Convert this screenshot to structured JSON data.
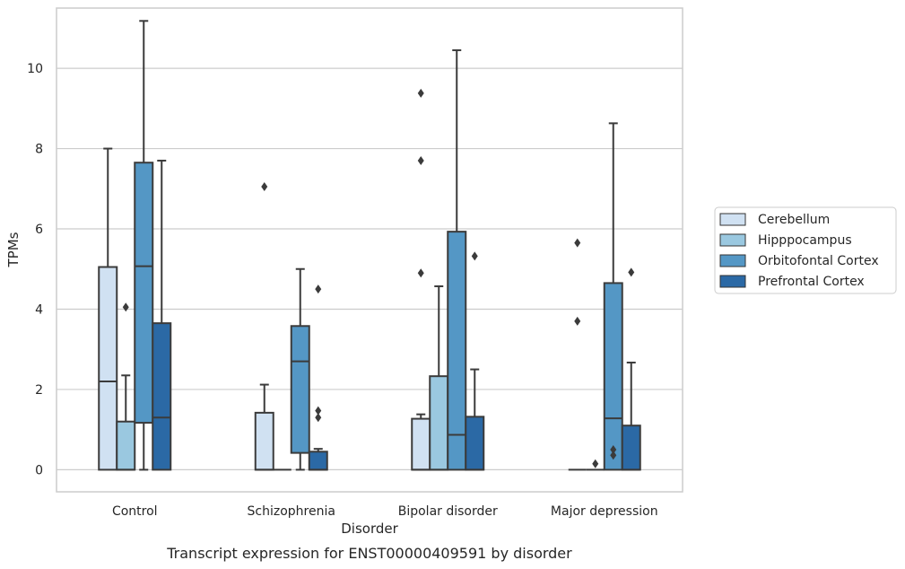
{
  "chart_data": {
    "type": "box",
    "title": "",
    "caption": "Transcript expression for ENST00000409591 by disorder",
    "xlabel": "Disorder",
    "ylabel": "TPMs",
    "ylim": [
      -0.55,
      11.5
    ],
    "yticks": [
      0,
      2,
      4,
      6,
      8,
      10
    ],
    "grid": "horizontal",
    "legend_position": "right",
    "categories": [
      "Control",
      "Schizophrenia",
      "Bipolar disorder",
      "Major depression"
    ],
    "series": [
      {
        "name": "Cerebellum",
        "color": "#d0e1f2",
        "boxes": [
          {
            "min": 0,
            "q1": 0,
            "median": 2.2,
            "q3": 5.05,
            "max": 8.0,
            "outliers": []
          },
          {
            "min": 0,
            "q1": 0,
            "median": 0,
            "q3": 1.42,
            "max": 2.12,
            "outliers": [
              7.05
            ]
          },
          {
            "min": 0,
            "q1": 0,
            "median": 0,
            "q3": 1.27,
            "max": 1.38,
            "outliers": [
              4.9,
              7.7,
              9.38
            ]
          },
          {
            "min": 0,
            "q1": 0,
            "median": 0,
            "q3": 0,
            "max": 0,
            "outliers": [
              3.7,
              5.65
            ]
          }
        ]
      },
      {
        "name": "Hipppocampus",
        "color": "#9ac8e0",
        "boxes": [
          {
            "min": 0,
            "q1": 0,
            "median": 0,
            "q3": 1.2,
            "max": 2.35,
            "outliers": [
              4.05
            ]
          },
          {
            "min": 0,
            "q1": 0,
            "median": 0,
            "q3": 0,
            "max": 0,
            "outliers": []
          },
          {
            "min": 0,
            "q1": 0,
            "median": 0,
            "q3": 2.33,
            "max": 4.57,
            "outliers": []
          },
          {
            "min": 0,
            "q1": 0,
            "median": 0,
            "q3": 0,
            "max": 0,
            "outliers": [
              0.15
            ]
          }
        ]
      },
      {
        "name": "Orbitofontal Cortex",
        "color": "#5497c5",
        "boxes": [
          {
            "min": 0,
            "q1": 1.17,
            "median": 5.07,
            "q3": 7.65,
            "max": 11.18,
            "outliers": []
          },
          {
            "min": 0,
            "q1": 0.42,
            "median": 2.7,
            "q3": 3.58,
            "max": 5.0,
            "outliers": []
          },
          {
            "min": 0,
            "q1": 0,
            "median": 0.87,
            "q3": 5.93,
            "max": 10.45,
            "outliers": []
          },
          {
            "min": 0,
            "q1": 0,
            "median": 1.28,
            "q3": 4.65,
            "max": 8.63,
            "outliers": [
              0.36,
              0.5
            ]
          }
        ]
      },
      {
        "name": "Prefrontal Cortex",
        "color": "#2b69a5",
        "boxes": [
          {
            "min": 0,
            "q1": 0,
            "median": 1.3,
            "q3": 3.65,
            "max": 7.7,
            "outliers": []
          },
          {
            "min": 0,
            "q1": 0,
            "median": 0,
            "q3": 0.45,
            "max": 0.52,
            "outliers": [
              1.3,
              1.47,
              4.5
            ]
          },
          {
            "min": 0,
            "q1": 0,
            "median": 0,
            "q3": 1.32,
            "max": 2.5,
            "outliers": [
              5.32
            ]
          },
          {
            "min": 0,
            "q1": 0,
            "median": 0,
            "q3": 1.1,
            "max": 2.67,
            "outliers": [
              4.92
            ]
          }
        ]
      }
    ]
  }
}
